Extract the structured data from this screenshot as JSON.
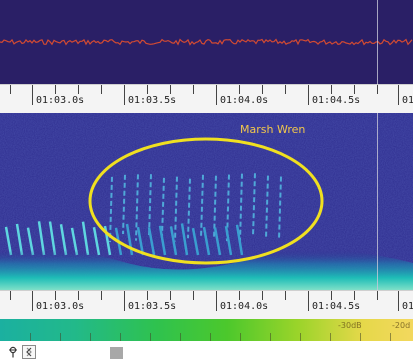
{
  "timeline": {
    "labels": [
      "01:03.0s",
      "01:03.5s",
      "01:04.0s",
      "01:04.5s",
      "01"
    ]
  },
  "spectrogram": {
    "species_label": "Marsh Wren",
    "highlight_color": "#f0e020"
  },
  "colorbar": {
    "labels": [
      "-30dB",
      "-20d"
    ]
  },
  "colors": {
    "waveform_bg": "#2a1f66",
    "waveform_trace": "#d24a32",
    "spectrogram_bg": "#2d2c8e",
    "annotation": "#f2c84b"
  },
  "toolbar": {
    "pin_icon": "pin-icon",
    "fit_icon": "fit-view-icon"
  }
}
